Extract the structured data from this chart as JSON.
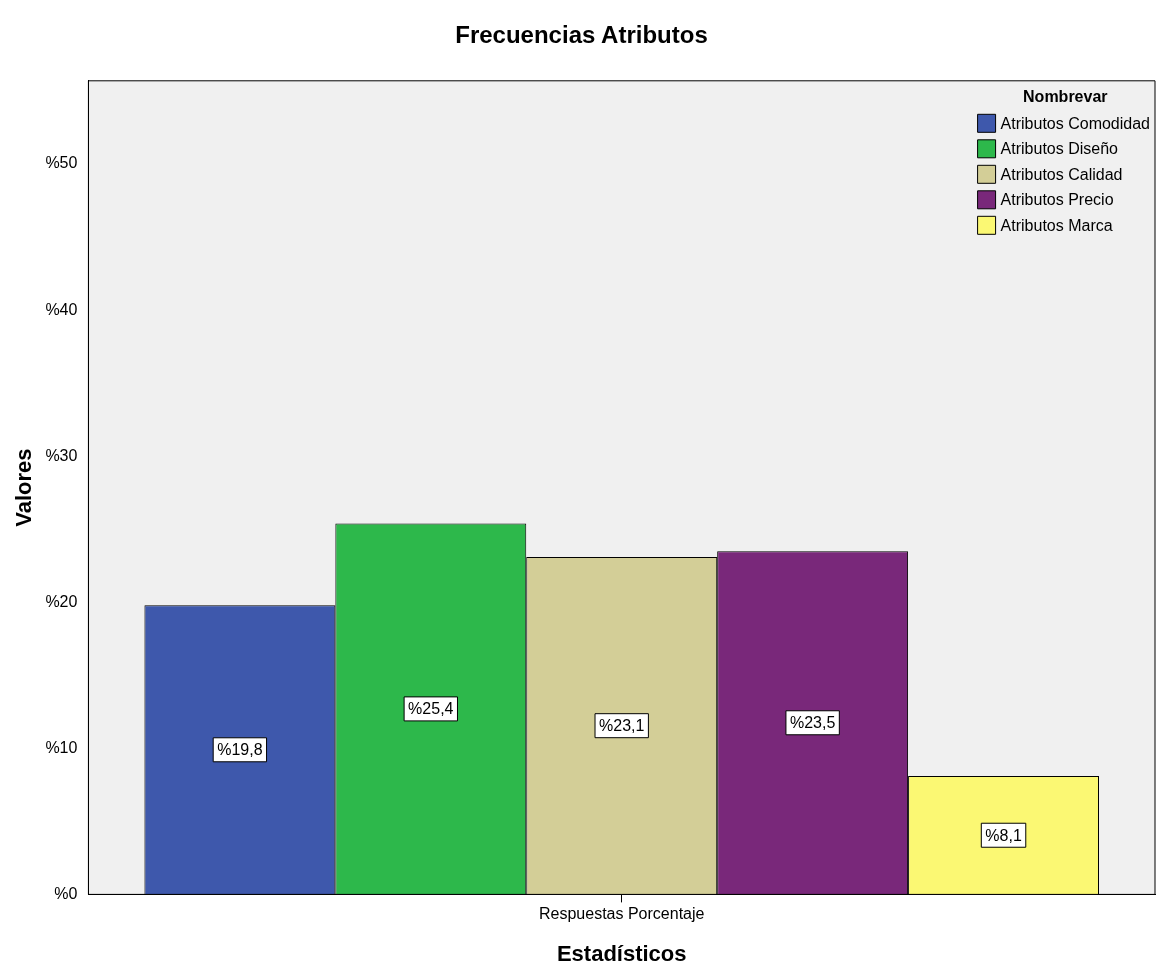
{
  "chart_data": {
    "type": "bar",
    "title": "Frecuencias Atributos",
    "xlabel": "Estadísticos",
    "ylabel": "Valores",
    "legend_title": "Nombrevar",
    "legend": "top right",
    "grid": false,
    "categories": [
      "Respuestas Porcentaje"
    ],
    "ylim": [
      0,
      55.7
    ],
    "yticks": [
      {
        "value": 0,
        "label": "%0"
      },
      {
        "value": 10,
        "label": "%10"
      },
      {
        "value": 20,
        "label": "%20"
      },
      {
        "value": 30,
        "label": "%30"
      },
      {
        "value": 40,
        "label": "%40"
      },
      {
        "value": 50,
        "label": "%50"
      }
    ],
    "series": [
      {
        "name": "Atributos Comodidad",
        "color": "#3e58ac",
        "values": [
          19.8
        ],
        "value_labels": [
          "%19,8"
        ]
      },
      {
        "name": "Atributos Diseño",
        "color": "#2db84b",
        "values": [
          25.4
        ],
        "value_labels": [
          "%25,4"
        ]
      },
      {
        "name": "Atributos Calidad",
        "color": "#d3ce97",
        "values": [
          23.1
        ],
        "value_labels": [
          "%23,1"
        ]
      },
      {
        "name": "Atributos Precio",
        "color": "#79287a",
        "values": [
          23.5
        ],
        "value_labels": [
          "%23,5"
        ]
      },
      {
        "name": "Atributos Marca",
        "color": "#fbf873",
        "values": [
          8.1
        ],
        "value_labels": [
          "%8,1"
        ]
      }
    ]
  }
}
